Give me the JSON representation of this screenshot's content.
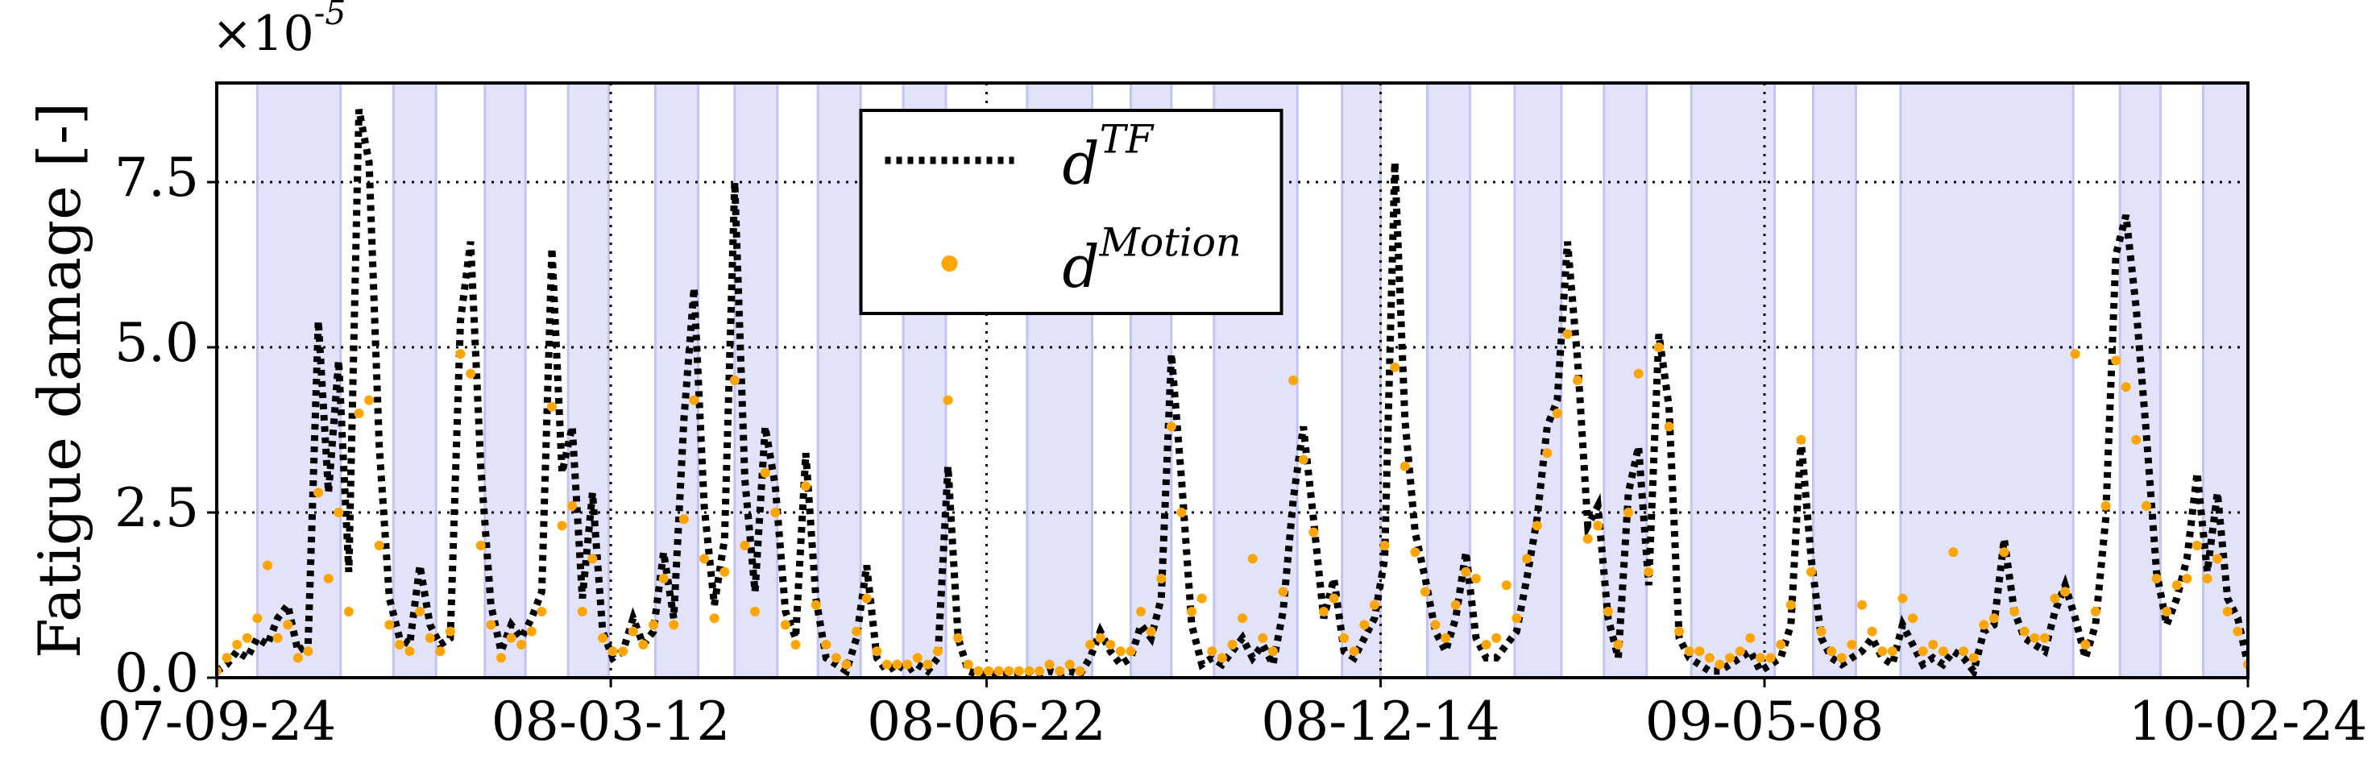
{
  "chart_data": {
    "type": "line",
    "y_label": "Fatigue damage [-]",
    "y_offset_label": "×10^-5",
    "xlim": [
      0,
      1000
    ],
    "xticks": [
      {
        "value": 0,
        "label": "07-09-24"
      },
      {
        "value": 194,
        "label": "08-03-12"
      },
      {
        "value": 379,
        "label": "08-06-22"
      },
      {
        "value": 573,
        "label": "08-12-14"
      },
      {
        "value": 762,
        "label": "09-05-08"
      },
      {
        "value": 1000,
        "label": "10-02-24"
      }
    ],
    "ylim": [
      0,
      9
    ],
    "yticks": [
      {
        "value": 0,
        "label": "0.0"
      },
      2.5,
      {
        "value": 5,
        "label": "5.0"
      },
      7.5
    ],
    "grid": true,
    "legend": "upper center",
    "shaded_color": "#e2e2fb",
    "shaded_spans": [
      [
        20,
        61
      ],
      [
        87,
        108
      ],
      [
        132,
        152
      ],
      [
        173,
        193
      ],
      [
        216,
        237
      ],
      [
        255,
        276
      ],
      [
        296,
        317
      ],
      [
        338,
        359
      ],
      [
        399,
        431
      ],
      [
        450,
        470
      ],
      [
        491,
        532
      ],
      [
        554,
        573
      ],
      [
        596,
        617
      ],
      [
        639,
        662
      ],
      [
        683,
        704
      ],
      [
        726,
        767
      ],
      [
        786,
        807
      ],
      [
        829,
        914
      ],
      [
        937,
        957
      ],
      [
        978,
        1000
      ]
    ],
    "x": [
      0,
      5,
      10,
      15,
      20,
      25,
      30,
      35,
      40,
      45,
      50,
      55,
      60,
      65,
      70,
      75,
      80,
      85,
      90,
      95,
      100,
      105,
      110,
      115,
      120,
      125,
      130,
      135,
      140,
      145,
      150,
      155,
      160,
      165,
      170,
      175,
      180,
      185,
      190,
      195,
      200,
      205,
      210,
      215,
      220,
      225,
      230,
      235,
      240,
      245,
      250,
      255,
      260,
      265,
      270,
      275,
      280,
      285,
      290,
      295,
      300,
      305,
      310,
      315,
      320,
      325,
      330,
      335,
      340,
      345,
      350,
      355,
      360,
      365,
      370,
      375,
      380,
      385,
      390,
      395,
      400,
      405,
      410,
      415,
      420,
      425,
      430,
      435,
      440,
      445,
      450,
      455,
      460,
      465,
      470,
      475,
      480,
      485,
      490,
      495,
      500,
      505,
      510,
      515,
      520,
      525,
      530,
      535,
      540,
      545,
      550,
      555,
      560,
      565,
      570,
      575,
      580,
      585,
      590,
      595,
      600,
      605,
      610,
      615,
      620,
      625,
      630,
      635,
      640,
      645,
      650,
      655,
      660,
      665,
      670,
      675,
      680,
      685,
      690,
      695,
      700,
      705,
      710,
      715,
      720,
      725,
      730,
      735,
      740,
      745,
      750,
      755,
      760,
      765,
      770,
      775,
      780,
      785,
      790,
      795,
      800,
      805,
      810,
      815,
      820,
      825,
      830,
      835,
      840,
      845,
      850,
      855,
      860,
      865,
      870,
      875,
      880,
      885,
      890,
      895,
      900,
      905,
      910,
      915,
      920,
      925,
      930,
      935,
      940,
      945,
      950,
      955,
      960,
      965,
      970,
      975,
      980,
      985,
      990,
      995,
      1000
    ],
    "series": [
      {
        "name": "d^TF",
        "color": "#000000",
        "style": "dotted",
        "values": [
          0.1,
          0.2,
          0.4,
          0.3,
          0.6,
          0.5,
          0.9,
          1.1,
          0.4,
          0.5,
          5.4,
          2.8,
          4.8,
          1.6,
          8.6,
          7.8,
          3.5,
          1.2,
          0.6,
          0.5,
          1.7,
          0.8,
          0.5,
          0.6,
          5.4,
          6.6,
          3.2,
          1.1,
          0.4,
          0.8,
          0.6,
          0.9,
          1.3,
          6.5,
          3.1,
          3.8,
          1.2,
          2.8,
          0.7,
          0.3,
          0.4,
          0.9,
          0.5,
          0.7,
          1.9,
          0.9,
          3.9,
          5.9,
          2.6,
          1.1,
          2.1,
          7.5,
          3.0,
          1.3,
          3.8,
          2.9,
          1.0,
          0.6,
          3.4,
          1.2,
          0.3,
          0.2,
          0.1,
          0.6,
          1.7,
          0.3,
          0.1,
          0.2,
          0.1,
          0.2,
          0.1,
          0.3,
          3.2,
          0.6,
          0.1,
          0.05,
          0.05,
          0.05,
          0.05,
          0.05,
          0.05,
          0.05,
          0.1,
          0.05,
          0.1,
          0.05,
          0.3,
          0.7,
          0.4,
          0.2,
          0.3,
          0.8,
          0.6,
          1.2,
          4.9,
          3.0,
          0.8,
          0.2,
          0.3,
          0.2,
          0.4,
          0.6,
          0.3,
          0.5,
          0.2,
          1.0,
          2.7,
          3.8,
          2.4,
          0.9,
          1.5,
          0.4,
          0.3,
          0.6,
          0.9,
          1.8,
          7.8,
          3.9,
          2.2,
          1.5,
          0.7,
          0.4,
          0.9,
          1.9,
          0.6,
          0.3,
          0.3,
          0.5,
          0.7,
          1.5,
          2.4,
          3.8,
          4.2,
          6.6,
          4.8,
          2.3,
          2.6,
          0.9,
          0.3,
          2.8,
          3.5,
          1.4,
          5.2,
          4.1,
          0.6,
          0.3,
          0.2,
          0.1,
          0.1,
          0.2,
          0.3,
          0.4,
          0.1,
          0.2,
          0.3,
          0.8,
          3.6,
          1.8,
          0.6,
          0.3,
          0.2,
          0.3,
          0.4,
          0.6,
          0.3,
          0.2,
          0.8,
          0.5,
          0.2,
          0.3,
          0.2,
          0.4,
          0.3,
          0.1,
          0.7,
          0.8,
          2.1,
          1.0,
          0.6,
          0.5,
          0.4,
          1.0,
          1.4,
          0.9,
          0.3,
          0.8,
          2.4,
          6.4,
          7.0,
          5.6,
          3.7,
          1.6,
          0.8,
          1.2,
          1.8,
          3.1,
          1.6,
          2.8,
          1.2,
          0.9,
          0.2
        ]
      },
      {
        "name": "d^Motion",
        "color": "#ffa500",
        "style": "dots",
        "values": [
          0.1,
          0.3,
          0.5,
          0.6,
          0.9,
          1.7,
          0.6,
          0.8,
          0.3,
          0.4,
          2.8,
          1.5,
          2.5,
          1.0,
          4.0,
          4.2,
          2.0,
          0.8,
          0.5,
          0.4,
          1.0,
          0.6,
          0.4,
          0.7,
          4.9,
          4.6,
          2.0,
          0.8,
          0.3,
          0.6,
          0.5,
          0.7,
          1.0,
          4.1,
          2.3,
          2.6,
          1.0,
          1.8,
          0.6,
          0.4,
          0.4,
          0.7,
          0.5,
          0.8,
          1.5,
          0.8,
          2.4,
          4.2,
          1.8,
          0.9,
          1.6,
          4.5,
          2.0,
          1.0,
          3.1,
          2.5,
          0.8,
          0.5,
          2.9,
          1.1,
          0.5,
          0.3,
          0.2,
          0.7,
          1.2,
          0.4,
          0.2,
          0.2,
          0.2,
          0.3,
          0.2,
          0.4,
          4.2,
          0.6,
          0.2,
          0.1,
          0.1,
          0.1,
          0.1,
          0.1,
          0.1,
          0.1,
          0.2,
          0.1,
          0.2,
          0.1,
          0.5,
          0.6,
          0.5,
          0.4,
          0.4,
          1.0,
          0.7,
          1.5,
          3.8,
          2.5,
          1.0,
          1.2,
          0.4,
          0.3,
          0.5,
          0.9,
          1.8,
          0.6,
          0.4,
          1.3,
          4.5,
          3.3,
          2.2,
          1.0,
          1.2,
          0.6,
          0.4,
          0.8,
          1.1,
          2.0,
          4.7,
          3.2,
          1.9,
          1.3,
          0.8,
          0.6,
          1.1,
          1.6,
          1.5,
          0.5,
          0.6,
          1.4,
          0.9,
          1.8,
          2.3,
          3.4,
          4.0,
          5.2,
          4.5,
          2.1,
          2.3,
          1.0,
          0.5,
          2.5,
          4.6,
          1.6,
          5.0,
          3.8,
          0.7,
          0.4,
          0.4,
          0.3,
          0.2,
          0.3,
          0.4,
          0.6,
          0.3,
          0.3,
          0.5,
          1.1,
          3.6,
          1.6,
          0.7,
          0.4,
          0.3,
          0.5,
          1.1,
          0.7,
          0.4,
          0.4,
          1.2,
          0.9,
          0.4,
          0.5,
          0.4,
          1.9,
          0.4,
          0.3,
          0.8,
          0.9,
          1.9,
          1.0,
          0.7,
          0.6,
          0.6,
          1.2,
          1.3,
          4.9,
          0.5,
          1.0,
          2.6,
          4.8,
          4.4,
          3.6,
          2.6,
          1.5,
          1.0,
          1.4,
          1.5,
          2.0,
          1.5,
          1.8,
          1.0,
          0.7,
          0.2
        ]
      }
    ]
  }
}
